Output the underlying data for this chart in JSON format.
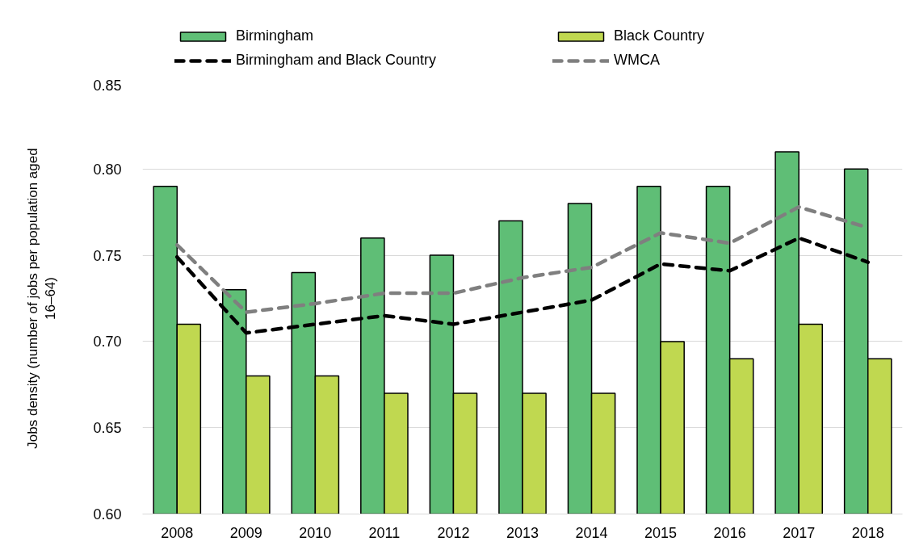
{
  "chart_data": {
    "type": "bar",
    "ylabel": "Jobs density (number of jobs per population aged 16–64)",
    "categories": [
      "2008",
      "2009",
      "2010",
      "2011",
      "2012",
      "2013",
      "2014",
      "2015",
      "2016",
      "2017",
      "2018"
    ],
    "series": [
      {
        "name": "Birmingham",
        "color": "#5fbe76",
        "values": [
          0.79,
          0.73,
          0.74,
          0.76,
          0.75,
          0.77,
          0.78,
          0.79,
          0.79,
          0.81,
          0.8
        ]
      },
      {
        "name": "Black Country",
        "color": "#c0d850",
        "values": [
          0.71,
          0.68,
          0.68,
          0.67,
          0.67,
          0.67,
          0.67,
          0.7,
          0.69,
          0.71,
          0.69
        ]
      },
      {
        "name": "Birmingham and Black Country",
        "type": "line",
        "line_style": "dashed",
        "color": "#000000",
        "values": [
          0.749,
          0.705,
          0.71,
          0.715,
          0.71,
          0.717,
          0.724,
          0.745,
          0.741,
          0.76,
          0.746
        ]
      },
      {
        "name": "WMCA",
        "type": "line",
        "line_style": "dashed",
        "color": "#7f7f7f",
        "values": [
          0.756,
          0.717,
          0.722,
          0.728,
          0.728,
          0.737,
          0.743,
          0.763,
          0.757,
          0.778,
          0.766
        ]
      }
    ],
    "ylim": [
      0.6,
      0.85
    ],
    "yticks": [
      {
        "value": 0.6,
        "label": "0.60"
      },
      0.65,
      {
        "value": 0.7,
        "label": "0.70"
      },
      0.75,
      {
        "value": 0.8,
        "label": "0.80"
      },
      0.85
    ],
    "grid": "y",
    "legend": "top"
  }
}
